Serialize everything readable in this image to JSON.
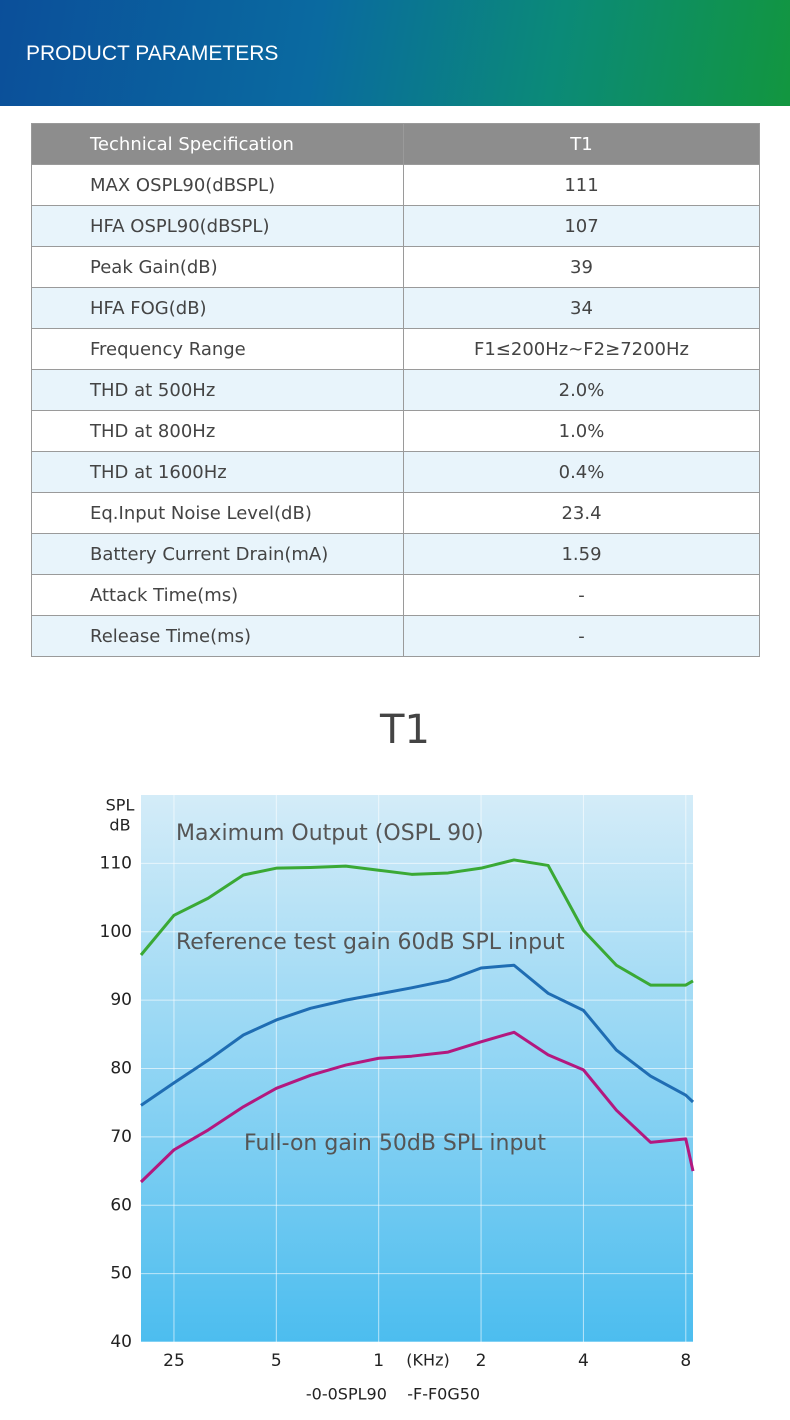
{
  "header": {
    "title": "PRODUCT PARAMETERS"
  },
  "table": {
    "columns": [
      "Technical Specification",
      "T1"
    ],
    "rows": [
      [
        "MAX OSPL90(dBSPL)",
        "111"
      ],
      [
        "HFA OSPL90(dBSPL)",
        "107"
      ],
      [
        "Peak Gain(dB)",
        "39"
      ],
      [
        "HFA FOG(dB)",
        "34"
      ],
      [
        "Frequency Range",
        "F1≤200Hz~F2≥7200Hz"
      ],
      [
        "THD at 500Hz",
        "2.0%"
      ],
      [
        "THD at 800Hz",
        "1.0%"
      ],
      [
        "THD at 1600Hz",
        "0.4%"
      ],
      [
        "Eq.Input Noise Level(dB)",
        "23.4"
      ],
      [
        "Battery Current Drain(mA)",
        "1.59"
      ],
      [
        "Attack Time(ms)",
        "-"
      ],
      [
        "Release Time(ms)",
        "-"
      ]
    ]
  },
  "chart_data": {
    "type": "line",
    "title": "T1",
    "y_label": [
      "SPL",
      "dB"
    ],
    "x_label": "(KHz)",
    "footnote": "-0-0SPL90    -F-F0G50",
    "x_scale": "log",
    "grid": true,
    "x": [
      200,
      250,
      315,
      400,
      500,
      630,
      800,
      1000,
      1250,
      1600,
      2000,
      2500,
      3150,
      4000,
      5000,
      6300,
      8000,
      8400
    ],
    "xlim": [
      200,
      8400
    ],
    "xticks": [
      {
        "value": 250,
        "label": "25"
      },
      {
        "value": 500,
        "label": "5"
      },
      {
        "value": 1000,
        "label": "1"
      },
      {
        "value": 2000,
        "label": "2"
      },
      {
        "value": 4000,
        "label": "4"
      },
      {
        "value": 8000,
        "label": "8"
      }
    ],
    "ylim": [
      40,
      120
    ],
    "yticks": [
      40,
      50,
      60,
      70,
      80,
      90,
      100,
      110
    ],
    "series": [
      {
        "name": "Maximum Output (OSPL 90)",
        "color": "#3aa935",
        "values": [
          96.6,
          102.4,
          104.9,
          108.3,
          109.3,
          109.4,
          109.6,
          109,
          108.4,
          108.6,
          109.3,
          110.5,
          109.7,
          100.2,
          95.1,
          92.2,
          92.2,
          92.8
        ]
      },
      {
        "name": "Reference test gain 60dB SPL input",
        "color": "#1f6db3",
        "values": [
          74.6,
          77.9,
          81.2,
          84.9,
          87.1,
          88.8,
          90,
          90.9,
          91.8,
          92.9,
          94.7,
          95.1,
          91,
          88.5,
          82.7,
          78.9,
          76.1,
          75.1
        ]
      },
      {
        "name": "Full-on gain 50dB SPL input",
        "color": "#b3187f",
        "values": [
          63.4,
          68.1,
          71,
          74.4,
          77.1,
          79,
          80.5,
          81.5,
          81.8,
          82.4,
          83.9,
          85.3,
          82,
          79.8,
          73.9,
          69.2,
          69.7,
          65
        ]
      }
    ]
  }
}
